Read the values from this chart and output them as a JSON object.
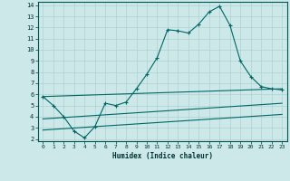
{
  "xlabel": "Humidex (Indice chaleur)",
  "bg_color": "#cce8e8",
  "grid_color": "#b0d0d0",
  "line_color": "#006666",
  "xlim": [
    -0.5,
    23.5
  ],
  "ylim": [
    1.8,
    14.3
  ],
  "xticks": [
    0,
    1,
    2,
    3,
    4,
    5,
    6,
    7,
    8,
    9,
    10,
    11,
    12,
    13,
    14,
    15,
    16,
    17,
    18,
    19,
    20,
    21,
    22,
    23
  ],
  "yticks": [
    2,
    3,
    4,
    5,
    6,
    7,
    8,
    9,
    10,
    11,
    12,
    13,
    14
  ],
  "series": [
    {
      "x": [
        0,
        1,
        2,
        3,
        4,
        5,
        6,
        7,
        8,
        9,
        10,
        11,
        12,
        13,
        14,
        15,
        16,
        17,
        18,
        19,
        20,
        21,
        22,
        23
      ],
      "y": [
        5.8,
        5.0,
        4.0,
        2.7,
        2.1,
        3.1,
        5.2,
        5.0,
        5.3,
        6.5,
        7.8,
        9.3,
        11.8,
        11.7,
        11.5,
        12.3,
        13.4,
        13.9,
        12.2,
        9.0,
        7.6,
        6.7,
        6.5,
        6.4
      ],
      "marker": "+"
    },
    {
      "x": [
        0,
        23
      ],
      "y": [
        5.8,
        6.5
      ],
      "marker": null
    },
    {
      "x": [
        0,
        23
      ],
      "y": [
        3.8,
        5.2
      ],
      "marker": null
    },
    {
      "x": [
        0,
        23
      ],
      "y": [
        2.8,
        4.2
      ],
      "marker": null
    }
  ]
}
